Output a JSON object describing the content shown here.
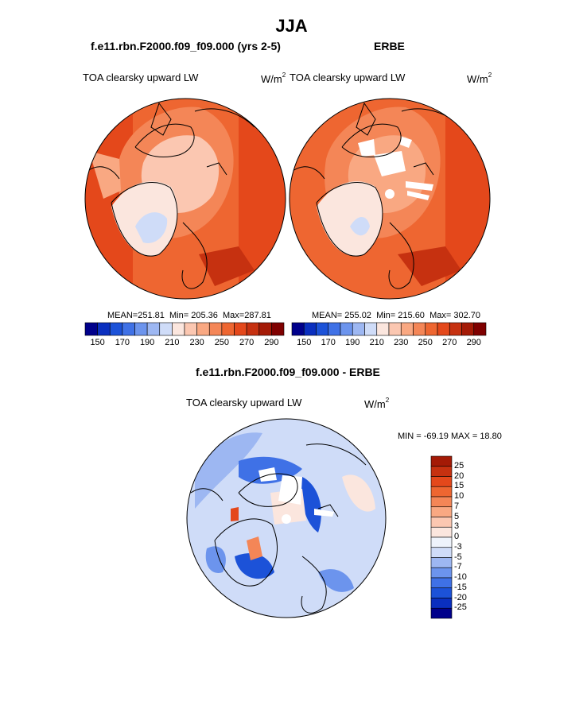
{
  "page": {
    "title": "JJA"
  },
  "panels": [
    {
      "id": "model",
      "header": "f.e11.rbn.F2000.f09_f09.000 (yrs 2-5)",
      "variable": "TOA clearsky upward LW",
      "units": "W/m",
      "units_sup": "2",
      "stats": {
        "mean_label": "MEAN=",
        "mean": "251.81",
        "min_label": "Min=",
        "min": "205.36",
        "max_label": "Max=",
        "max": "287.81"
      }
    },
    {
      "id": "obs",
      "header": "ERBE",
      "variable": "TOA clearsky upward LW",
      "units": "W/m",
      "units_sup": "2",
      "stats": {
        "mean_label": "MEAN=",
        "mean": "255.02",
        "min_label": "Min=",
        "min": "215.60",
        "max_label": "Max=",
        "max": "302.70"
      }
    }
  ],
  "difference": {
    "header": "f.e11.rbn.F2000.f09_f09.000 - ERBE",
    "variable": "TOA clearsky upward LW",
    "units": "W/m",
    "units_sup": "2",
    "minmax_text": "MIN = -69.19 MAX =  18.80"
  },
  "colors": {
    "abs_scale": [
      "#00008b",
      "#0a2fbf",
      "#1c52d8",
      "#3f71e6",
      "#6c94ed",
      "#9db7f2",
      "#cfdcf8",
      "#fbe6de",
      "#fbc7b1",
      "#f9a882",
      "#f48657",
      "#ee6631",
      "#e4481b",
      "#c63110",
      "#a41a06",
      "#7f0000"
    ],
    "diff_scale": [
      "#00008b",
      "#0a2fbf",
      "#1c52d8",
      "#3f71e6",
      "#6c94ed",
      "#9db7f2",
      "#cfdcf8",
      "#eef3fb",
      "#fbe6de",
      "#fbc7b1",
      "#f9a882",
      "#f48657",
      "#ee6631",
      "#e4481b",
      "#c63110",
      "#a41a06"
    ]
  },
  "chart_data": [
    {
      "type": "heatmap",
      "projection": "north-polar-stereographic",
      "title": "TOA clearsky upward LW",
      "subtitle": "f.e11.rbn.F2000.f09_f09.000 (yrs 2-5)",
      "units": "W/m2",
      "mean": 251.81,
      "min": 205.36,
      "max": 287.81,
      "colorbar_ticks": [
        "150",
        "170",
        "190",
        "210",
        "230",
        "250",
        "270",
        "290"
      ]
    },
    {
      "type": "heatmap",
      "projection": "north-polar-stereographic",
      "title": "TOA clearsky upward LW",
      "subtitle": "ERBE",
      "units": "W/m2",
      "mean": 255.02,
      "min": 215.6,
      "max": 302.7,
      "colorbar_ticks": [
        "150",
        "170",
        "190",
        "210",
        "230",
        "250",
        "270",
        "290"
      ]
    },
    {
      "type": "heatmap",
      "projection": "north-polar-stereographic",
      "title": "TOA clearsky upward LW",
      "subtitle": "f.e11.rbn.F2000.f09_f09.000 - ERBE",
      "units": "W/m2",
      "min": -69.19,
      "max": 18.8,
      "colorbar_ticks": [
        "25",
        "20",
        "15",
        "10",
        "7",
        "5",
        "3",
        "0",
        "-3",
        "-5",
        "-7",
        "-10",
        "-15",
        "-20",
        "-25"
      ]
    }
  ]
}
